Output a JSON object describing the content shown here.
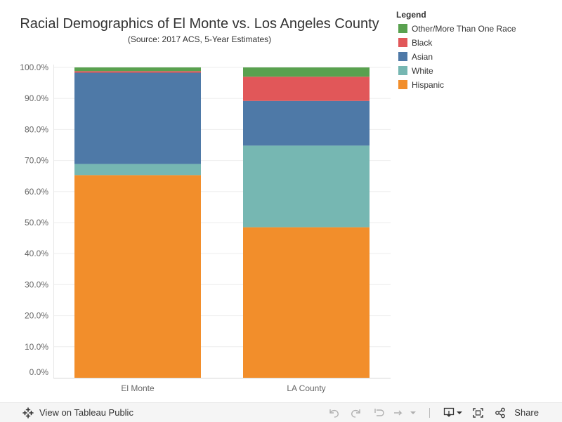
{
  "chart_data": {
    "type": "bar",
    "stacked": true,
    "title": "Racial Demographics of El Monte vs. Los Angeles County",
    "subtitle": "(Source: 2017 ACS, 5-Year Estimates)",
    "categories": [
      "El Monte",
      "LA County"
    ],
    "ylim": [
      0,
      100
    ],
    "y_ticks": [
      "0.0%",
      "10.0%",
      "20.0%",
      "30.0%",
      "40.0%",
      "50.0%",
      "60.0%",
      "70.0%",
      "80.0%",
      "90.0%",
      "100.0%"
    ],
    "grid": true,
    "series": [
      {
        "name": "Hispanic",
        "color": "#f28e2b",
        "values": [
          65.3,
          48.5
        ]
      },
      {
        "name": "White",
        "color": "#76b7b2",
        "values": [
          3.6,
          26.3
        ]
      },
      {
        "name": "Asian",
        "color": "#4e79a7",
        "values": [
          29.4,
          14.4
        ]
      },
      {
        "name": "Black",
        "color": "#e15759",
        "values": [
          0.5,
          7.8
        ]
      },
      {
        "name": "Other/More Than One Race",
        "color": "#59a14f",
        "values": [
          1.2,
          3.0
        ]
      }
    ],
    "legend": {
      "title": "Legend",
      "placement": "top-right",
      "order": [
        "Other/More Than One Race",
        "Black",
        "Asian",
        "White",
        "Hispanic"
      ]
    }
  },
  "toolbar": {
    "view_label": "View on Tableau Public",
    "share_label": "Share"
  }
}
